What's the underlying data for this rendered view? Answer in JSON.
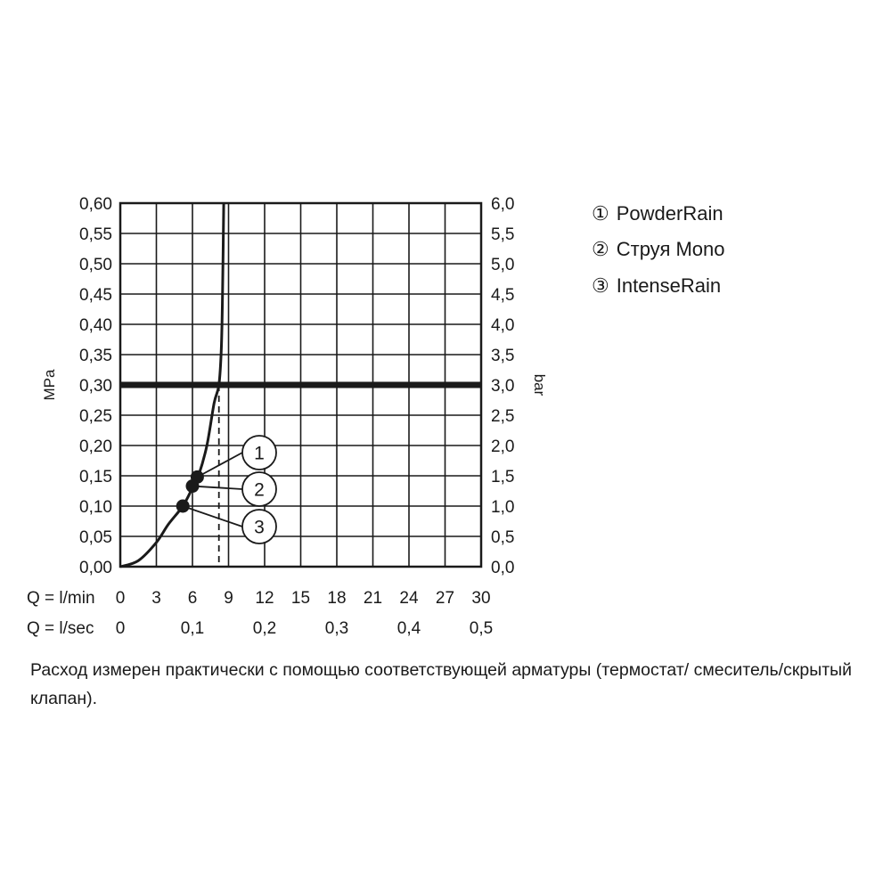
{
  "chart_data": {
    "type": "line",
    "ylabel_left": "MPa",
    "ylabel_right": "bar",
    "xlabel_primary": "Q = l/min",
    "xlabel_secondary": "Q = l/sec",
    "x_ticks_lmin": [
      "0",
      "3",
      "6",
      "9",
      "12",
      "15",
      "18",
      "21",
      "24",
      "27",
      "30"
    ],
    "x_ticks_lsec": [
      "0",
      "0,1",
      "0,2",
      "0,3",
      "0,4",
      "0,5"
    ],
    "x_ticks_lsec_values": [
      0,
      6,
      12,
      18,
      24,
      30
    ],
    "y_ticks_mpa": [
      "0,00",
      "0,05",
      "0,10",
      "0,15",
      "0,20",
      "0,25",
      "0,30",
      "0,35",
      "0,40",
      "0,45",
      "0,50",
      "0,55",
      "0,60"
    ],
    "y_ticks_bar": [
      "0,0",
      "0,5",
      "1,0",
      "1,5",
      "2,0",
      "2,5",
      "3,0",
      "3,5",
      "4,0",
      "4,5",
      "5,0",
      "5,5",
      "6,0"
    ],
    "xlim": [
      0,
      30
    ],
    "ylim": [
      0,
      0.6
    ],
    "grid": true,
    "reference_line": {
      "pressure_mpa": 0.3
    },
    "flow_marker": {
      "flow_lmin": 8.2,
      "pressure_mpa": 0.3
    },
    "series": [
      {
        "points": [
          {
            "x": 0,
            "y": 0.0
          },
          {
            "x": 1.5,
            "y": 0.01
          },
          {
            "x": 3.0,
            "y": 0.04
          },
          {
            "x": 4.0,
            "y": 0.07
          },
          {
            "x": 5.2,
            "y": 0.1
          },
          {
            "x": 6.0,
            "y": 0.13
          },
          {
            "x": 6.5,
            "y": 0.15
          },
          {
            "x": 7.2,
            "y": 0.2
          },
          {
            "x": 7.8,
            "y": 0.27
          },
          {
            "x": 8.2,
            "y": 0.3
          },
          {
            "x": 8.4,
            "y": 0.36
          },
          {
            "x": 8.5,
            "y": 0.45
          },
          {
            "x": 8.6,
            "y": 0.6
          }
        ]
      }
    ],
    "markers": [
      {
        "id": "1",
        "label": "1",
        "x": 6.4,
        "y": 0.148
      },
      {
        "id": "2",
        "label": "2",
        "x": 6.0,
        "y": 0.133
      },
      {
        "id": "3",
        "label": "3",
        "x": 5.2,
        "y": 0.1
      }
    ]
  },
  "legend": [
    {
      "num": "①",
      "name": "PowderRain"
    },
    {
      "num": "②",
      "name": "Струя Mono"
    },
    {
      "num": "③",
      "name": "IntenseRain"
    }
  ],
  "caption": "Расход измерен практически с помощью соответствующей арматуры (термостат/ смеситель/скрытый клапан)."
}
